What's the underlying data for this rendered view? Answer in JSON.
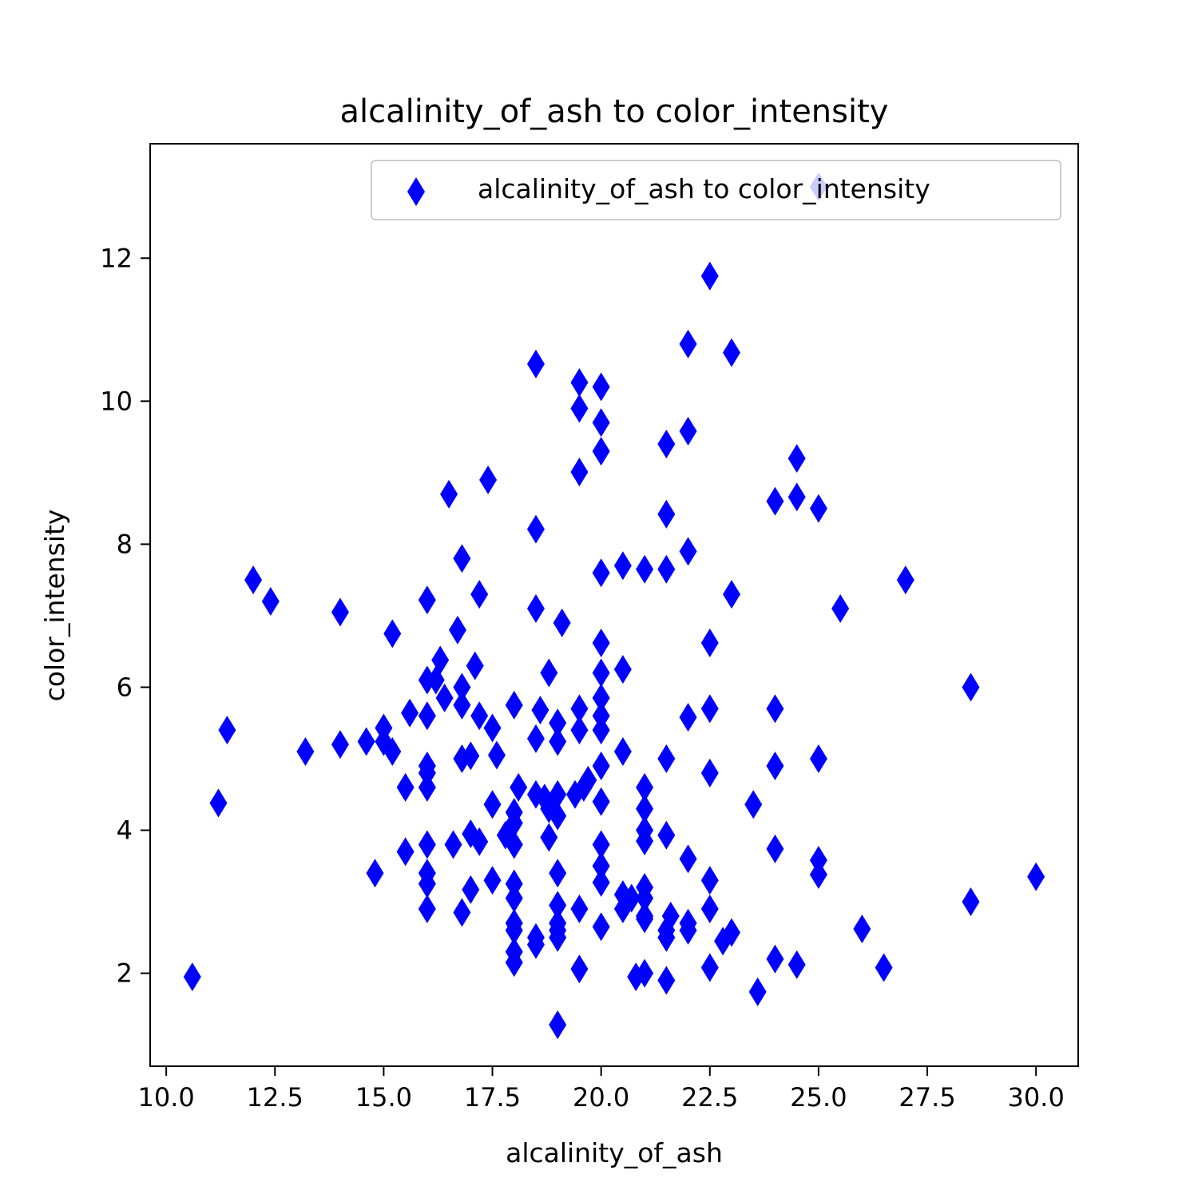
{
  "chart_data": {
    "type": "scatter",
    "title": "alcalinity_of_ash to color_intensity",
    "xlabel": "alcalinity_of_ash",
    "ylabel": "color_intensity",
    "xlim": [
      9.63,
      30.97
    ],
    "ylim": [
      0.7,
      13.6
    ],
    "xticks": [
      10.0,
      12.5,
      15.0,
      17.5,
      20.0,
      22.5,
      25.0,
      27.5,
      30.0
    ],
    "xtick_labels": [
      "10.0",
      "12.5",
      "15.0",
      "17.5",
      "20.0",
      "22.5",
      "25.0",
      "27.5",
      "30.0"
    ],
    "yticks": [
      2,
      4,
      6,
      8,
      10,
      12
    ],
    "ytick_labels": [
      "2",
      "4",
      "6",
      "8",
      "10",
      "12"
    ],
    "grid": false,
    "legend": {
      "position": "top-right"
    },
    "marker": "thin-diamond",
    "series": [
      {
        "name": "alcalinity_of_ash to color_intensity",
        "color": "#0000ff",
        "points": [
          [
            10.6,
            1.95
          ],
          [
            11.2,
            4.38
          ],
          [
            11.4,
            5.4
          ],
          [
            12.0,
            7.5
          ],
          [
            12.4,
            7.2
          ],
          [
            13.2,
            5.1
          ],
          [
            14.0,
            5.2
          ],
          [
            14.0,
            7.05
          ],
          [
            14.6,
            5.24
          ],
          [
            14.8,
            3.4
          ],
          [
            15.0,
            5.43
          ],
          [
            15.0,
            5.24
          ],
          [
            15.2,
            5.1
          ],
          [
            15.2,
            6.75
          ],
          [
            15.5,
            4.6
          ],
          [
            15.5,
            3.7
          ],
          [
            15.6,
            5.64
          ],
          [
            16.0,
            7.22
          ],
          [
            16.0,
            6.1
          ],
          [
            16.0,
            5.6
          ],
          [
            16.0,
            4.9
          ],
          [
            16.0,
            4.8
          ],
          [
            16.0,
            4.6
          ],
          [
            16.0,
            3.8
          ],
          [
            16.0,
            3.4
          ],
          [
            16.0,
            3.25
          ],
          [
            16.0,
            2.9
          ],
          [
            16.2,
            6.1
          ],
          [
            16.3,
            6.38
          ],
          [
            16.4,
            5.85
          ],
          [
            16.5,
            8.7
          ],
          [
            16.6,
            3.8
          ],
          [
            16.7,
            6.8
          ],
          [
            16.8,
            7.8
          ],
          [
            16.8,
            6.0
          ],
          [
            16.8,
            5.75
          ],
          [
            16.8,
            5.0
          ],
          [
            16.8,
            2.85
          ],
          [
            17.0,
            5.04
          ],
          [
            17.0,
            3.95
          ],
          [
            17.0,
            3.17
          ],
          [
            17.1,
            6.3
          ],
          [
            17.2,
            7.3
          ],
          [
            17.2,
            5.6
          ],
          [
            17.2,
            3.84
          ],
          [
            17.4,
            8.9
          ],
          [
            17.5,
            5.43
          ],
          [
            17.5,
            4.36
          ],
          [
            17.5,
            3.3
          ],
          [
            17.6,
            5.05
          ],
          [
            17.8,
            3.93
          ],
          [
            17.9,
            4.0
          ],
          [
            18.0,
            5.75
          ],
          [
            18.0,
            4.25
          ],
          [
            18.0,
            4.1
          ],
          [
            18.0,
            3.8
          ],
          [
            18.0,
            3.25
          ],
          [
            18.0,
            3.05
          ],
          [
            18.0,
            2.7
          ],
          [
            18.0,
            2.6
          ],
          [
            18.0,
            2.3
          ],
          [
            18.0,
            2.15
          ],
          [
            18.1,
            4.6
          ],
          [
            18.5,
            10.52
          ],
          [
            18.5,
            8.21
          ],
          [
            18.5,
            7.1
          ],
          [
            18.5,
            5.28
          ],
          [
            18.5,
            4.5
          ],
          [
            18.5,
            2.5
          ],
          [
            18.5,
            2.4
          ],
          [
            18.6,
            5.68
          ],
          [
            18.7,
            4.45
          ],
          [
            18.8,
            6.2
          ],
          [
            18.8,
            4.3
          ],
          [
            18.8,
            3.9
          ],
          [
            19.0,
            5.5
          ],
          [
            19.0,
            5.24
          ],
          [
            19.0,
            4.5
          ],
          [
            19.0,
            4.2
          ],
          [
            19.0,
            3.4
          ],
          [
            19.0,
            2.95
          ],
          [
            19.0,
            2.7
          ],
          [
            19.0,
            2.6
          ],
          [
            19.0,
            2.5
          ],
          [
            19.0,
            1.28
          ],
          [
            19.1,
            6.9
          ],
          [
            19.4,
            4.5
          ],
          [
            19.5,
            10.26
          ],
          [
            19.5,
            9.899
          ],
          [
            19.5,
            9.01
          ],
          [
            19.5,
            5.7
          ],
          [
            19.5,
            5.4
          ],
          [
            19.5,
            2.9
          ],
          [
            19.5,
            2.06
          ],
          [
            19.6,
            4.6
          ],
          [
            19.7,
            4.7
          ],
          [
            20.0,
            10.2
          ],
          [
            20.0,
            9.7
          ],
          [
            20.0,
            9.3
          ],
          [
            20.0,
            7.6
          ],
          [
            20.0,
            6.62
          ],
          [
            20.0,
            6.2
          ],
          [
            20.0,
            5.85
          ],
          [
            20.0,
            5.6
          ],
          [
            20.0,
            5.4
          ],
          [
            20.0,
            4.9
          ],
          [
            20.0,
            4.4
          ],
          [
            20.0,
            3.8
          ],
          [
            20.0,
            3.5
          ],
          [
            20.0,
            3.27
          ],
          [
            20.0,
            2.65
          ],
          [
            20.5,
            7.7
          ],
          [
            20.5,
            6.25
          ],
          [
            20.5,
            5.1
          ],
          [
            20.5,
            3.1
          ],
          [
            20.5,
            2.9
          ],
          [
            20.7,
            3.05
          ],
          [
            20.8,
            1.95
          ],
          [
            21.0,
            7.65
          ],
          [
            21.0,
            4.6
          ],
          [
            21.0,
            4.3
          ],
          [
            21.0,
            4.0
          ],
          [
            21.0,
            3.85
          ],
          [
            21.0,
            3.2
          ],
          [
            21.0,
            3.05
          ],
          [
            21.0,
            2.8
          ],
          [
            21.0,
            2.76
          ],
          [
            21.0,
            2.0
          ],
          [
            21.5,
            9.4
          ],
          [
            21.5,
            8.42
          ],
          [
            21.5,
            7.65
          ],
          [
            21.5,
            5.0
          ],
          [
            21.5,
            3.93
          ],
          [
            21.5,
            2.6
          ],
          [
            21.5,
            2.5
          ],
          [
            21.5,
            1.9
          ],
          [
            21.6,
            2.8
          ],
          [
            22.0,
            10.8
          ],
          [
            22.0,
            9.58
          ],
          [
            22.0,
            7.9
          ],
          [
            22.0,
            5.58
          ],
          [
            22.0,
            3.6
          ],
          [
            22.0,
            2.7
          ],
          [
            22.0,
            2.6
          ],
          [
            22.5,
            11.75
          ],
          [
            22.5,
            6.62
          ],
          [
            22.5,
            5.7
          ],
          [
            22.5,
            4.8
          ],
          [
            22.5,
            3.3
          ],
          [
            22.5,
            2.9
          ],
          [
            22.5,
            2.08
          ],
          [
            22.8,
            2.45
          ],
          [
            23.0,
            10.68
          ],
          [
            23.0,
            7.3
          ],
          [
            23.0,
            2.57
          ],
          [
            23.5,
            4.36
          ],
          [
            23.6,
            1.74
          ],
          [
            24.0,
            8.6
          ],
          [
            24.0,
            5.7
          ],
          [
            24.0,
            4.9
          ],
          [
            24.0,
            3.74
          ],
          [
            24.0,
            2.2
          ],
          [
            24.5,
            9.2
          ],
          [
            24.5,
            8.66
          ],
          [
            24.5,
            2.12
          ],
          [
            25.0,
            13.0
          ],
          [
            25.0,
            8.5
          ],
          [
            25.0,
            5.0
          ],
          [
            25.0,
            3.58
          ],
          [
            25.0,
            3.38
          ],
          [
            25.5,
            7.1
          ],
          [
            26.0,
            2.62
          ],
          [
            26.5,
            2.08
          ],
          [
            27.0,
            7.5
          ],
          [
            28.5,
            6.0
          ],
          [
            28.5,
            3.0
          ],
          [
            30.0,
            3.35
          ]
        ]
      }
    ]
  }
}
